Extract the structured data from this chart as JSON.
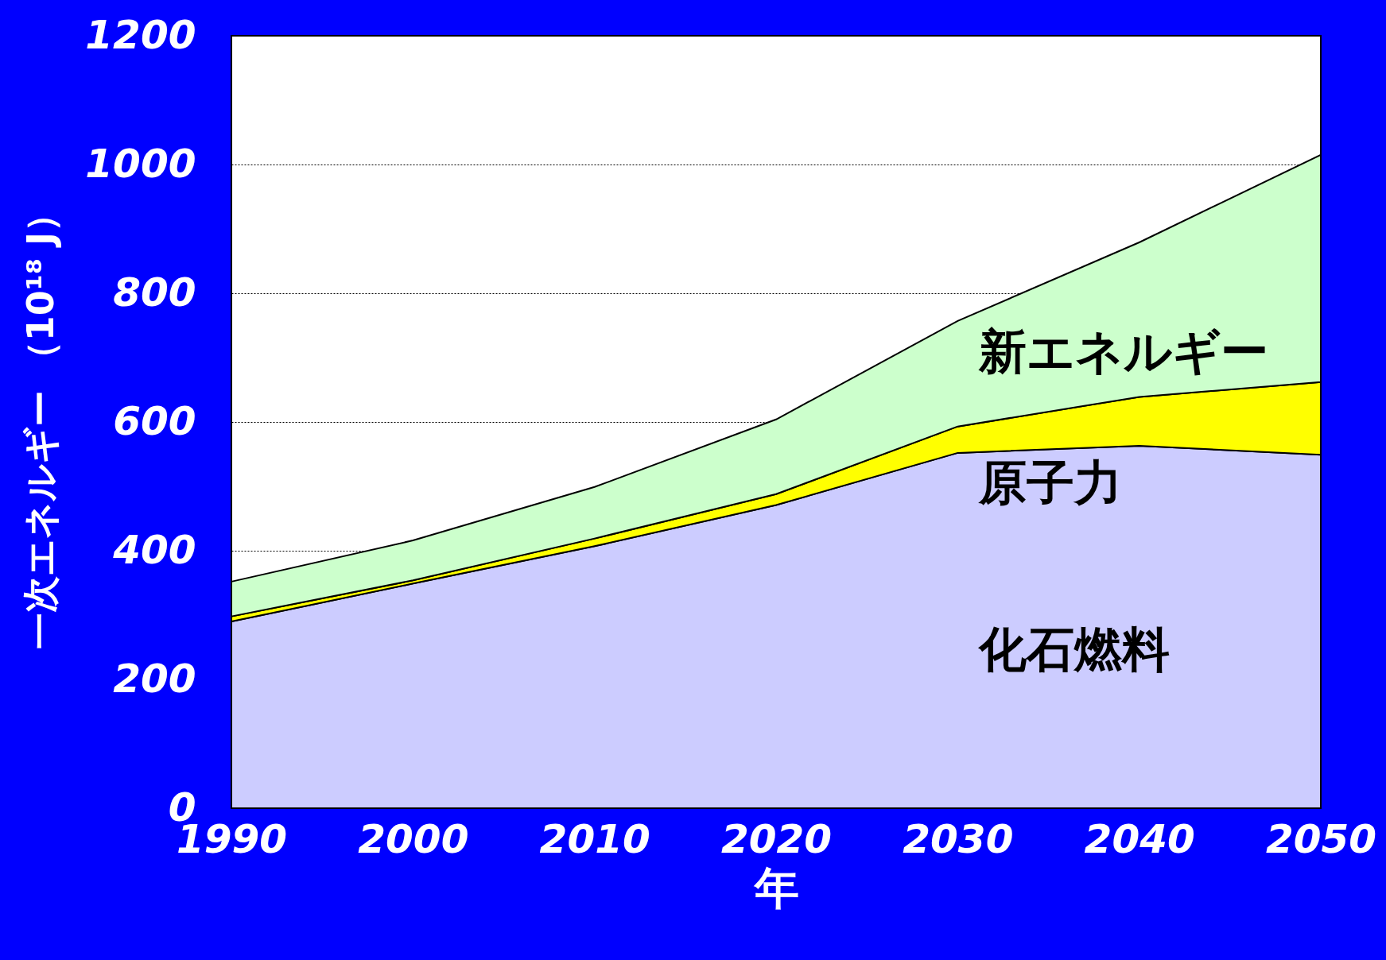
{
  "chart_data": {
    "type": "area",
    "stacked": true,
    "xlabel": "年",
    "ylabel": "一次エネルギー （10¹⁸ J）",
    "x": [
      1990,
      2000,
      2010,
      2020,
      2030,
      2040,
      2050
    ],
    "series": [
      {
        "name": "化石燃料",
        "color": "#ccccff",
        "values": [
          290,
          349,
          407,
          471,
          552,
          563,
          549
        ]
      },
      {
        "name": "原子力",
        "color": "#ffff00",
        "values": [
          8,
          5,
          12,
          17,
          41,
          76,
          113
        ]
      },
      {
        "name": "新エネルギー",
        "color": "#ccffcc",
        "values": [
          54,
          62,
          80,
          116,
          164,
          240,
          353
        ]
      }
    ],
    "xlim": [
      1990,
      2050
    ],
    "xticks": [
      1990,
      2000,
      2010,
      2020,
      2030,
      2040,
      2050
    ],
    "ylim": [
      0,
      1200
    ],
    "yticks": [
      0,
      200,
      400,
      600,
      800,
      1000,
      1200
    ],
    "grid": "y",
    "legend": false
  }
}
